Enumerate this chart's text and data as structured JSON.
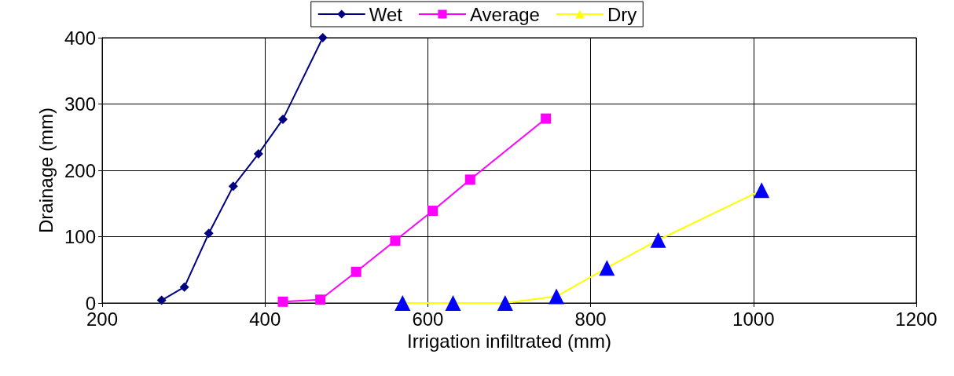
{
  "chart_data": {
    "type": "line",
    "xlabel": "Irrigation infiltrated (mm)",
    "ylabel": "Drainage (mm)",
    "xlim": [
      200,
      1200
    ],
    "xticks": [
      200,
      400,
      600,
      800,
      1000,
      1200
    ],
    "ylim": [
      0,
      400
    ],
    "yticks": [
      0,
      100,
      200,
      300,
      400
    ],
    "grid": true,
    "legend": "top",
    "line_style": "solid",
    "series": [
      {
        "name": "Wet",
        "color": "#000080",
        "marker": "diamond",
        "x": [
          273,
          301,
          331,
          361,
          392,
          422,
          471
        ],
        "values": [
          4,
          24,
          105,
          176,
          225,
          277,
          400
        ]
      },
      {
        "name": "Average",
        "color": "#ff00ff",
        "marker": "square",
        "x": [
          422,
          468,
          512,
          560,
          606,
          652,
          745
        ],
        "values": [
          2,
          5,
          47,
          94,
          139,
          186,
          278
        ]
      },
      {
        "name": "Dry",
        "color": "#ffff00",
        "colors": [
          "#0000ff",
          "#0000ff",
          "#0000ff",
          "#0000ff",
          "#0000ff",
          "#0000ff",
          "#0000ff"
        ],
        "marker": "triangle",
        "x": [
          569,
          631,
          695,
          758,
          820,
          883,
          1010
        ],
        "values": [
          0,
          0,
          0,
          10,
          53,
          95,
          170
        ]
      }
    ]
  }
}
